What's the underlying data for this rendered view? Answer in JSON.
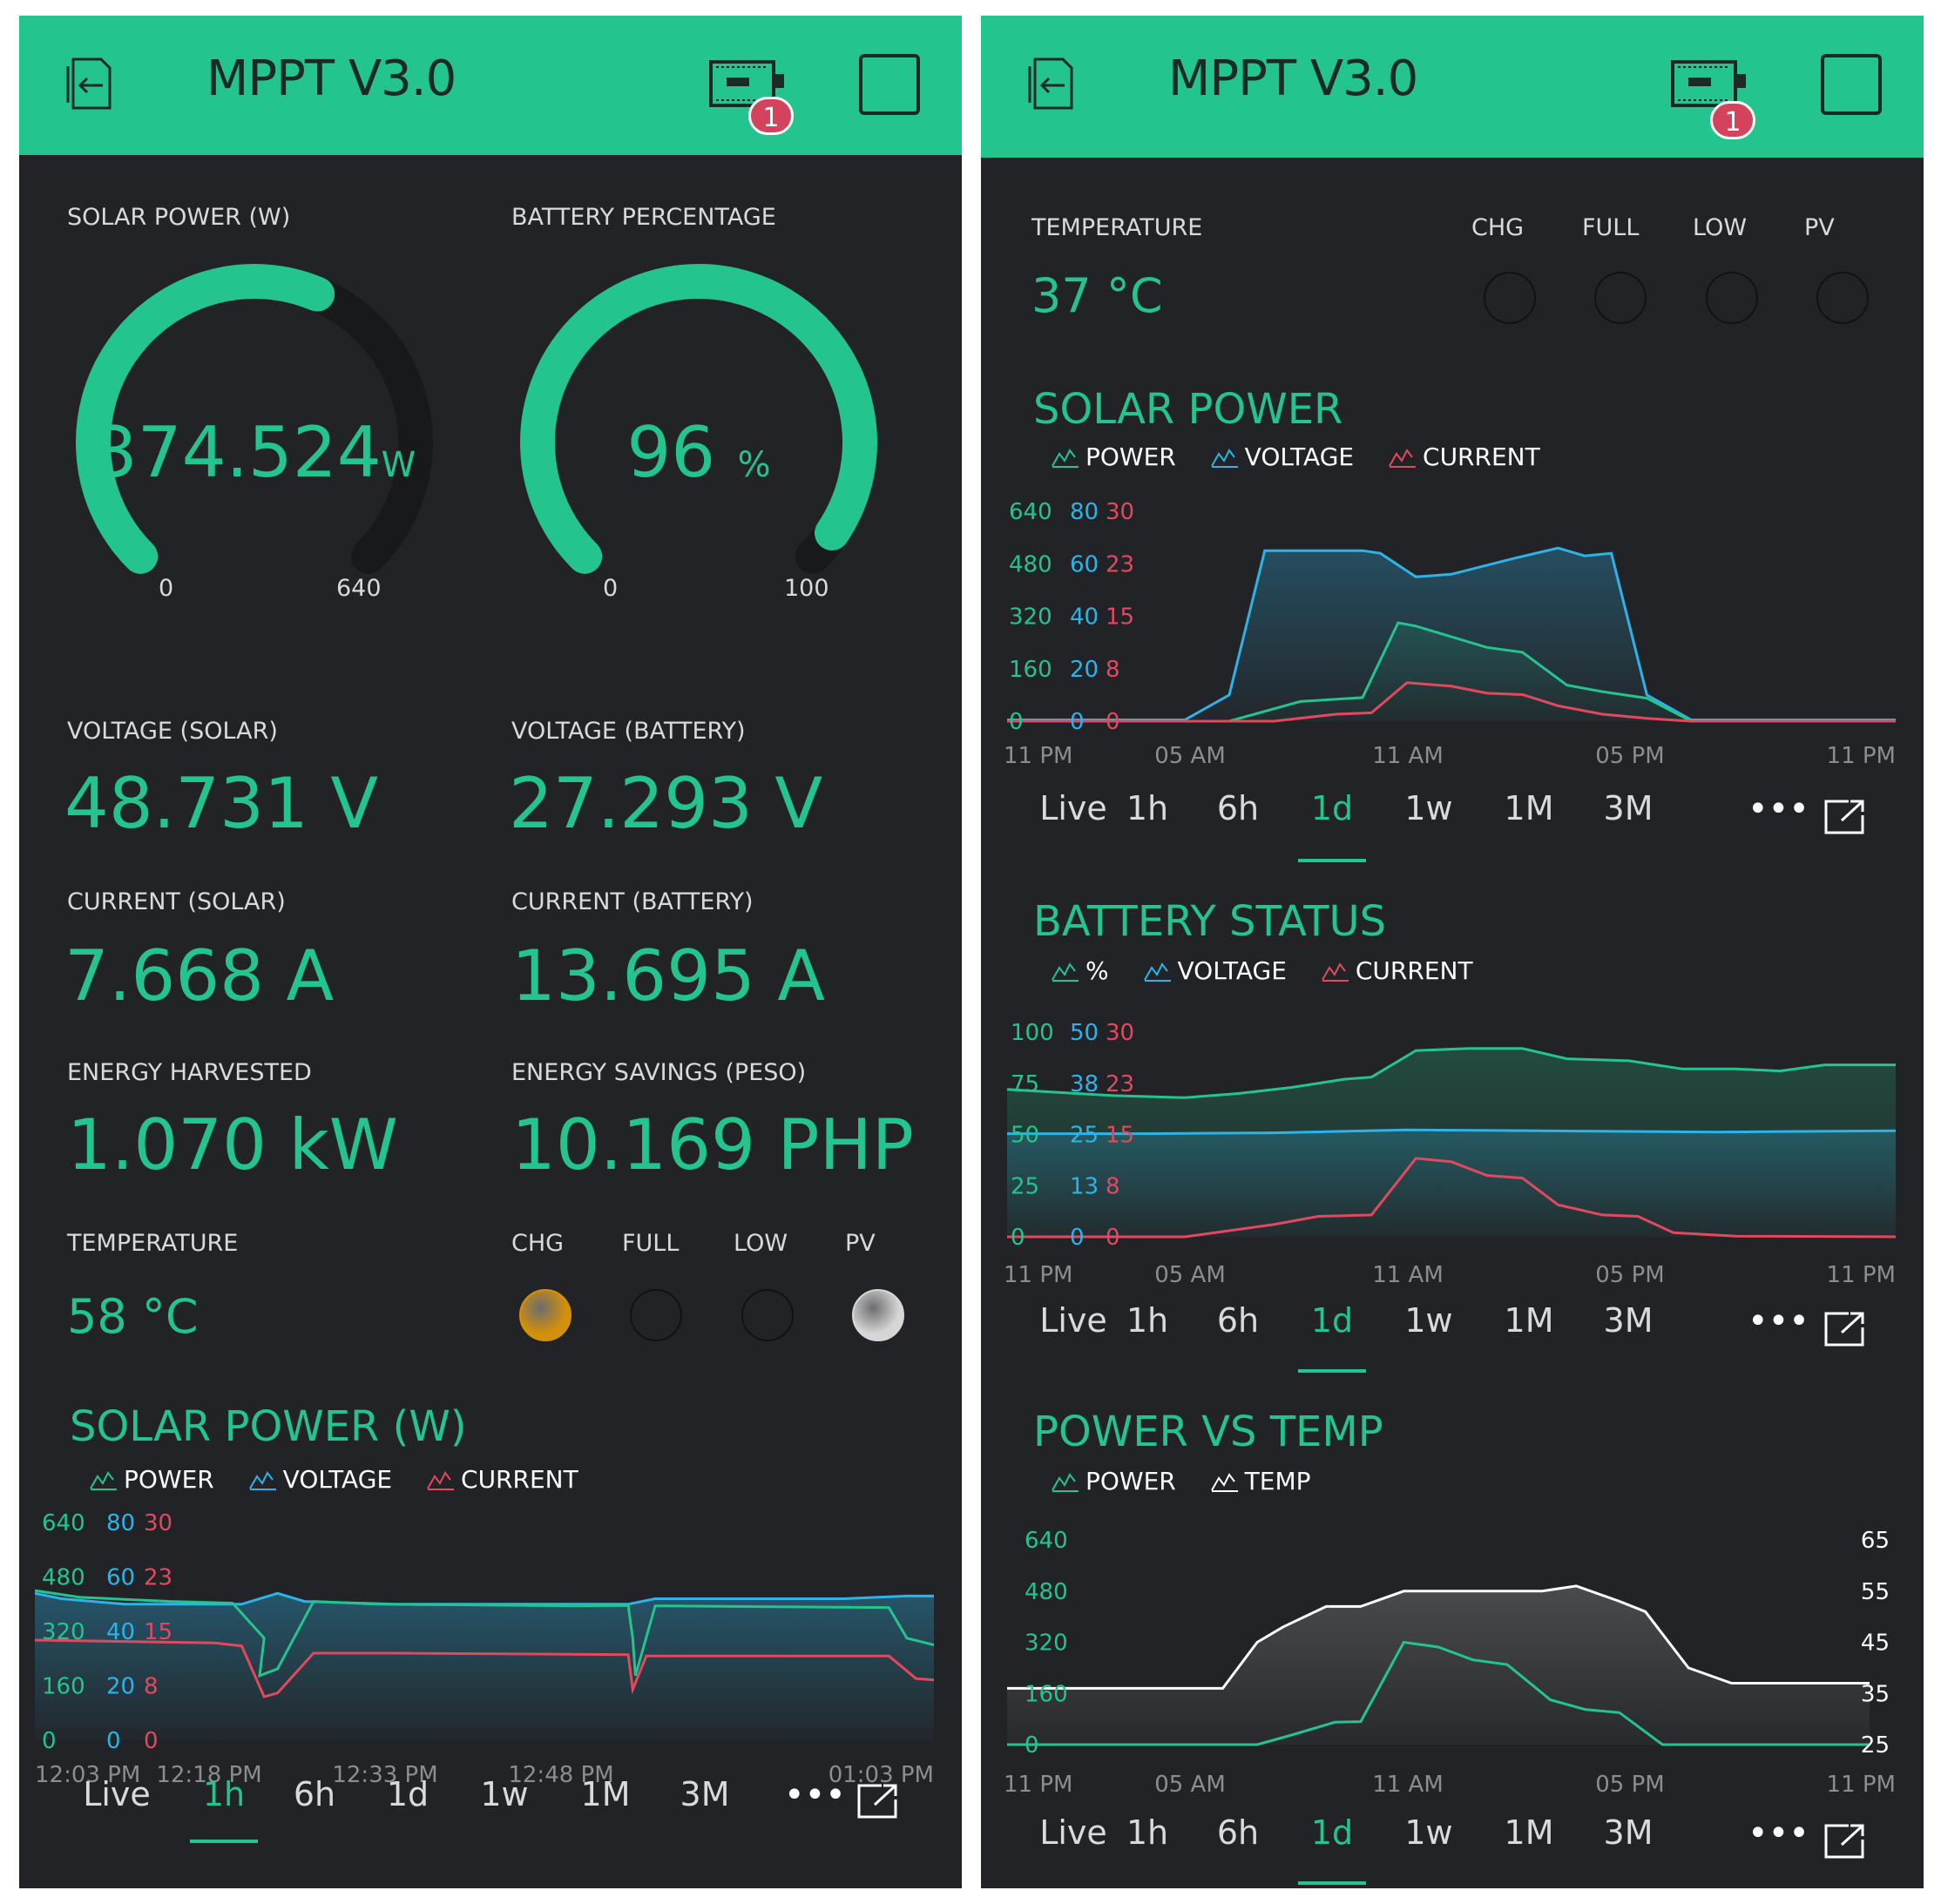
{
  "app_title": "MPPT V3.0",
  "badge_count": "1",
  "colors": {
    "accent": "#23c48e",
    "blue": "#2db3e8",
    "red": "#e2495f",
    "white": "#ffffff",
    "bg": "#222326",
    "badge": "#d3435c",
    "led_orange": "#d3900a",
    "led_white": "#d6d6d6"
  },
  "left": {
    "solar_power_label": "SOLAR POWER (W)",
    "solar_power_value": "374.524",
    "solar_power_unit": "W",
    "solar_power_fraction": 0.585,
    "solar_power_min": "0",
    "solar_power_max": "640",
    "battery_label": "BATTERY PERCENTAGE",
    "battery_value": "96",
    "battery_unit": "%",
    "battery_fraction": 0.96,
    "battery_min": "0",
    "battery_max": "100",
    "voltage_solar_label": "VOLTAGE (SOLAR)",
    "voltage_solar_value": "48.731 V",
    "voltage_battery_label": "VOLTAGE (BATTERY)",
    "voltage_battery_value": "27.293 V",
    "current_solar_label": "CURRENT (SOLAR)",
    "current_solar_value": "7.668 A",
    "current_battery_label": "CURRENT (BATTERY)",
    "current_battery_value": "13.695 A",
    "energy_harvested_label": "ENERGY HARVESTED",
    "energy_harvested_value": "1.070 kW",
    "energy_savings_label": "ENERGY SAVINGS (PESO)",
    "energy_savings_value": "10.169 PHP",
    "temperature_label": "TEMPERATURE",
    "temperature_value": "58 °C",
    "leds": [
      {
        "label": "CHG",
        "state": "on",
        "color": "#d3900a"
      },
      {
        "label": "FULL",
        "state": "off"
      },
      {
        "label": "LOW",
        "state": "off"
      },
      {
        "label": "PV",
        "state": "on",
        "color": "#d6d6d6"
      }
    ],
    "chart_title": "SOLAR POWER (W)",
    "legend": [
      "POWER",
      "VOLTAGE",
      "CURRENT"
    ],
    "y_power": [
      "640",
      "480",
      "320",
      "160",
      "0"
    ],
    "y_voltage": [
      "80",
      "60",
      "40",
      "20",
      "0"
    ],
    "y_current": [
      "30",
      "23",
      "15",
      "8",
      "0"
    ],
    "x_ticks": [
      "12:03 PM",
      "12:18 PM",
      "12:33 PM",
      "12:48 PM",
      "01:03 PM"
    ],
    "tabs": [
      "Live",
      "1h",
      "6h",
      "1d",
      "1w",
      "1M",
      "3M"
    ],
    "active_tab": "1h",
    "more": "•••"
  },
  "right": {
    "temperature_label": "TEMPERATURE",
    "temperature_value": "37 °C",
    "leds": [
      {
        "label": "CHG",
        "state": "off"
      },
      {
        "label": "FULL",
        "state": "off"
      },
      {
        "label": "LOW",
        "state": "off"
      },
      {
        "label": "PV",
        "state": "off"
      }
    ],
    "solar": {
      "title": "SOLAR POWER",
      "legend": [
        "POWER",
        "VOLTAGE",
        "CURRENT"
      ],
      "y_power": [
        "640",
        "480",
        "320",
        "160",
        "0"
      ],
      "y_voltage": [
        "80",
        "60",
        "40",
        "20",
        "0"
      ],
      "y_current": [
        "30",
        "23",
        "15",
        "8",
        "0"
      ],
      "x_ticks": [
        "11 PM",
        "05 AM",
        "11 AM",
        "05 PM",
        "11 PM"
      ],
      "active_tab": "1d"
    },
    "battery": {
      "title": "BATTERY STATUS",
      "legend": [
        "%",
        "VOLTAGE",
        "CURRENT"
      ],
      "y_percent": [
        "100",
        "75",
        "50",
        "25",
        "0"
      ],
      "y_voltage": [
        "50",
        "38",
        "25",
        "13",
        "0"
      ],
      "y_current": [
        "30",
        "23",
        "15",
        "8",
        "0"
      ],
      "x_ticks": [
        "11 PM",
        "05 AM",
        "11 AM",
        "05 PM",
        "11 PM"
      ],
      "active_tab": "1d"
    },
    "power_temp": {
      "title": "POWER VS TEMP",
      "legend": [
        "POWER",
        "TEMP"
      ],
      "y_left": [
        "640",
        "480",
        "320",
        "160",
        "0"
      ],
      "y_right": [
        "65",
        "55",
        "45",
        "35",
        "25"
      ],
      "x_ticks": [
        "11 PM",
        "05 AM",
        "11 AM",
        "05 PM",
        "11 PM"
      ],
      "active_tab": "1d"
    },
    "tabs": [
      "Live",
      "1h",
      "6h",
      "1d",
      "1w",
      "1M",
      "3M"
    ],
    "more": "•••"
  },
  "chart_data": [
    {
      "type": "line",
      "title": "SOLAR POWER (W)",
      "x": [
        "12:03 PM",
        "12:18 PM",
        "12:33 PM",
        "12:48 PM",
        "01:03 PM"
      ],
      "series": [
        {
          "name": "POWER",
          "axis_max": 640,
          "values": [
            [
              0,
              440
            ],
            [
              0.05,
              420
            ],
            [
              0.15,
              408
            ],
            [
              0.22,
              403
            ],
            [
              0.255,
              300
            ],
            [
              0.25,
              190
            ],
            [
              0.27,
              210
            ],
            [
              0.31,
              408
            ],
            [
              0.38,
              400
            ],
            [
              0.6,
              395
            ],
            [
              0.66,
              396
            ],
            [
              0.665,
              300
            ],
            [
              0.668,
              190
            ],
            [
              0.69,
              395
            ],
            [
              0.95,
              390
            ],
            [
              0.97,
              300
            ],
            [
              1,
              280
            ]
          ]
        },
        {
          "name": "VOLTAGE",
          "axis_max": 80,
          "values": [
            [
              0,
              54
            ],
            [
              0.03,
              52
            ],
            [
              0.1,
              50
            ],
            [
              0.23,
              50
            ],
            [
              0.27,
              54
            ],
            [
              0.3,
              51
            ],
            [
              0.4,
              50
            ],
            [
              0.66,
              50
            ],
            [
              0.69,
              52
            ],
            [
              0.9,
              52
            ],
            [
              0.97,
              53
            ],
            [
              1,
              53
            ]
          ]
        },
        {
          "name": "CURRENT",
          "axis_max": 30,
          "values": [
            [
              0,
              13.8
            ],
            [
              0.2,
              13.4
            ],
            [
              0.23,
              13
            ],
            [
              0.255,
              6
            ],
            [
              0.27,
              6.5
            ],
            [
              0.31,
              12
            ],
            [
              0.4,
              12
            ],
            [
              0.66,
              11.8
            ],
            [
              0.665,
              7
            ],
            [
              0.68,
              11.6
            ],
            [
              0.95,
              11.6
            ],
            [
              0.98,
              8.5
            ],
            [
              1,
              8.3
            ]
          ]
        }
      ]
    },
    {
      "type": "area",
      "title": "SOLAR POWER",
      "x": [
        "11 PM",
        "05 AM",
        "11 AM",
        "05 PM",
        "11 PM"
      ],
      "series": [
        {
          "name": "VOLTAGE",
          "axis_max": 80,
          "values": [
            [
              0,
              0.5
            ],
            [
              0.2,
              0.5
            ],
            [
              0.25,
              10
            ],
            [
              0.29,
              65
            ],
            [
              0.4,
              65
            ],
            [
              0.42,
              64
            ],
            [
              0.46,
              55
            ],
            [
              0.5,
              56
            ],
            [
              0.57,
              62
            ],
            [
              0.62,
              66
            ],
            [
              0.65,
              63
            ],
            [
              0.68,
              64
            ],
            [
              0.72,
              10
            ],
            [
              0.77,
              0.5
            ],
            [
              1,
              0.5
            ]
          ]
        },
        {
          "name": "POWER",
          "axis_max": 640,
          "values": [
            [
              0,
              0
            ],
            [
              0.25,
              0
            ],
            [
              0.33,
              60
            ],
            [
              0.4,
              72
            ],
            [
              0.44,
              300
            ],
            [
              0.46,
              290
            ],
            [
              0.54,
              225
            ],
            [
              0.58,
              210
            ],
            [
              0.63,
              110
            ],
            [
              0.67,
              90
            ],
            [
              0.72,
              70
            ],
            [
              0.77,
              0
            ],
            [
              1,
              0
            ]
          ]
        },
        {
          "name": "CURRENT",
          "axis_max": 30,
          "values": [
            [
              0,
              0
            ],
            [
              0.3,
              0
            ],
            [
              0.37,
              1
            ],
            [
              0.41,
              1.2
            ],
            [
              0.45,
              5.5
            ],
            [
              0.5,
              5
            ],
            [
              0.54,
              4
            ],
            [
              0.58,
              3.8
            ],
            [
              0.62,
              2.2
            ],
            [
              0.67,
              1
            ],
            [
              0.72,
              0.4
            ],
            [
              0.77,
              0
            ],
            [
              1,
              0
            ]
          ]
        }
      ]
    },
    {
      "type": "area",
      "title": "BATTERY STATUS",
      "x": [
        "11 PM",
        "05 AM",
        "11 AM",
        "05 PM",
        "11 PM"
      ],
      "series": [
        {
          "name": "%",
          "axis_max": 100,
          "values": [
            [
              0,
              72
            ],
            [
              0.12,
              69
            ],
            [
              0.2,
              68
            ],
            [
              0.26,
              70
            ],
            [
              0.32,
              73
            ],
            [
              0.38,
              77
            ],
            [
              0.41,
              78
            ],
            [
              0.46,
              91
            ],
            [
              0.52,
              92
            ],
            [
              0.58,
              92
            ],
            [
              0.63,
              87
            ],
            [
              0.7,
              86
            ],
            [
              0.76,
              82
            ],
            [
              0.82,
              82
            ],
            [
              0.87,
              81
            ],
            [
              0.92,
              84
            ],
            [
              1,
              84
            ]
          ]
        },
        {
          "name": "VOLTAGE",
          "axis_max": 50,
          "values": [
            [
              0,
              25.2
            ],
            [
              0.15,
              25.2
            ],
            [
              0.3,
              25.4
            ],
            [
              0.45,
              26.1
            ],
            [
              0.6,
              25.9
            ],
            [
              0.8,
              25.6
            ],
            [
              1,
              25.9
            ]
          ]
        },
        {
          "name": "CURRENT",
          "axis_max": 30,
          "values": [
            [
              0,
              0
            ],
            [
              0.2,
              0
            ],
            [
              0.3,
              1.8
            ],
            [
              0.35,
              3
            ],
            [
              0.41,
              3.2
            ],
            [
              0.46,
              11.5
            ],
            [
              0.5,
              11
            ],
            [
              0.54,
              9
            ],
            [
              0.58,
              8.6
            ],
            [
              0.62,
              4.7
            ],
            [
              0.67,
              3.2
            ],
            [
              0.71,
              3
            ],
            [
              0.75,
              0.6
            ],
            [
              0.82,
              0.1
            ],
            [
              1,
              0
            ]
          ]
        }
      ]
    },
    {
      "type": "area",
      "title": "POWER VS TEMP",
      "x": [
        "11 PM",
        "05 AM",
        "11 AM",
        "05 PM",
        "11 PM"
      ],
      "series": [
        {
          "name": "TEMP",
          "axis_min": 25,
          "axis_max": 65,
          "values": [
            [
              0,
              36
            ],
            [
              0.25,
              36
            ],
            [
              0.29,
              45
            ],
            [
              0.32,
              48
            ],
            [
              0.37,
              52
            ],
            [
              0.41,
              52
            ],
            [
              0.46,
              55
            ],
            [
              0.55,
              55
            ],
            [
              0.62,
              55
            ],
            [
              0.66,
              56
            ],
            [
              0.71,
              53
            ],
            [
              0.74,
              51
            ],
            [
              0.79,
              40
            ],
            [
              0.84,
              37
            ],
            [
              1,
              37
            ]
          ]
        },
        {
          "name": "POWER",
          "axis_max": 640,
          "values": [
            [
              0,
              0
            ],
            [
              0.29,
              0
            ],
            [
              0.33,
              30
            ],
            [
              0.38,
              70
            ],
            [
              0.41,
              72
            ],
            [
              0.46,
              320
            ],
            [
              0.5,
              305
            ],
            [
              0.54,
              265
            ],
            [
              0.58,
              250
            ],
            [
              0.63,
              140
            ],
            [
              0.67,
              110
            ],
            [
              0.71,
              100
            ],
            [
              0.76,
              0
            ],
            [
              1,
              0
            ]
          ]
        }
      ]
    }
  ]
}
